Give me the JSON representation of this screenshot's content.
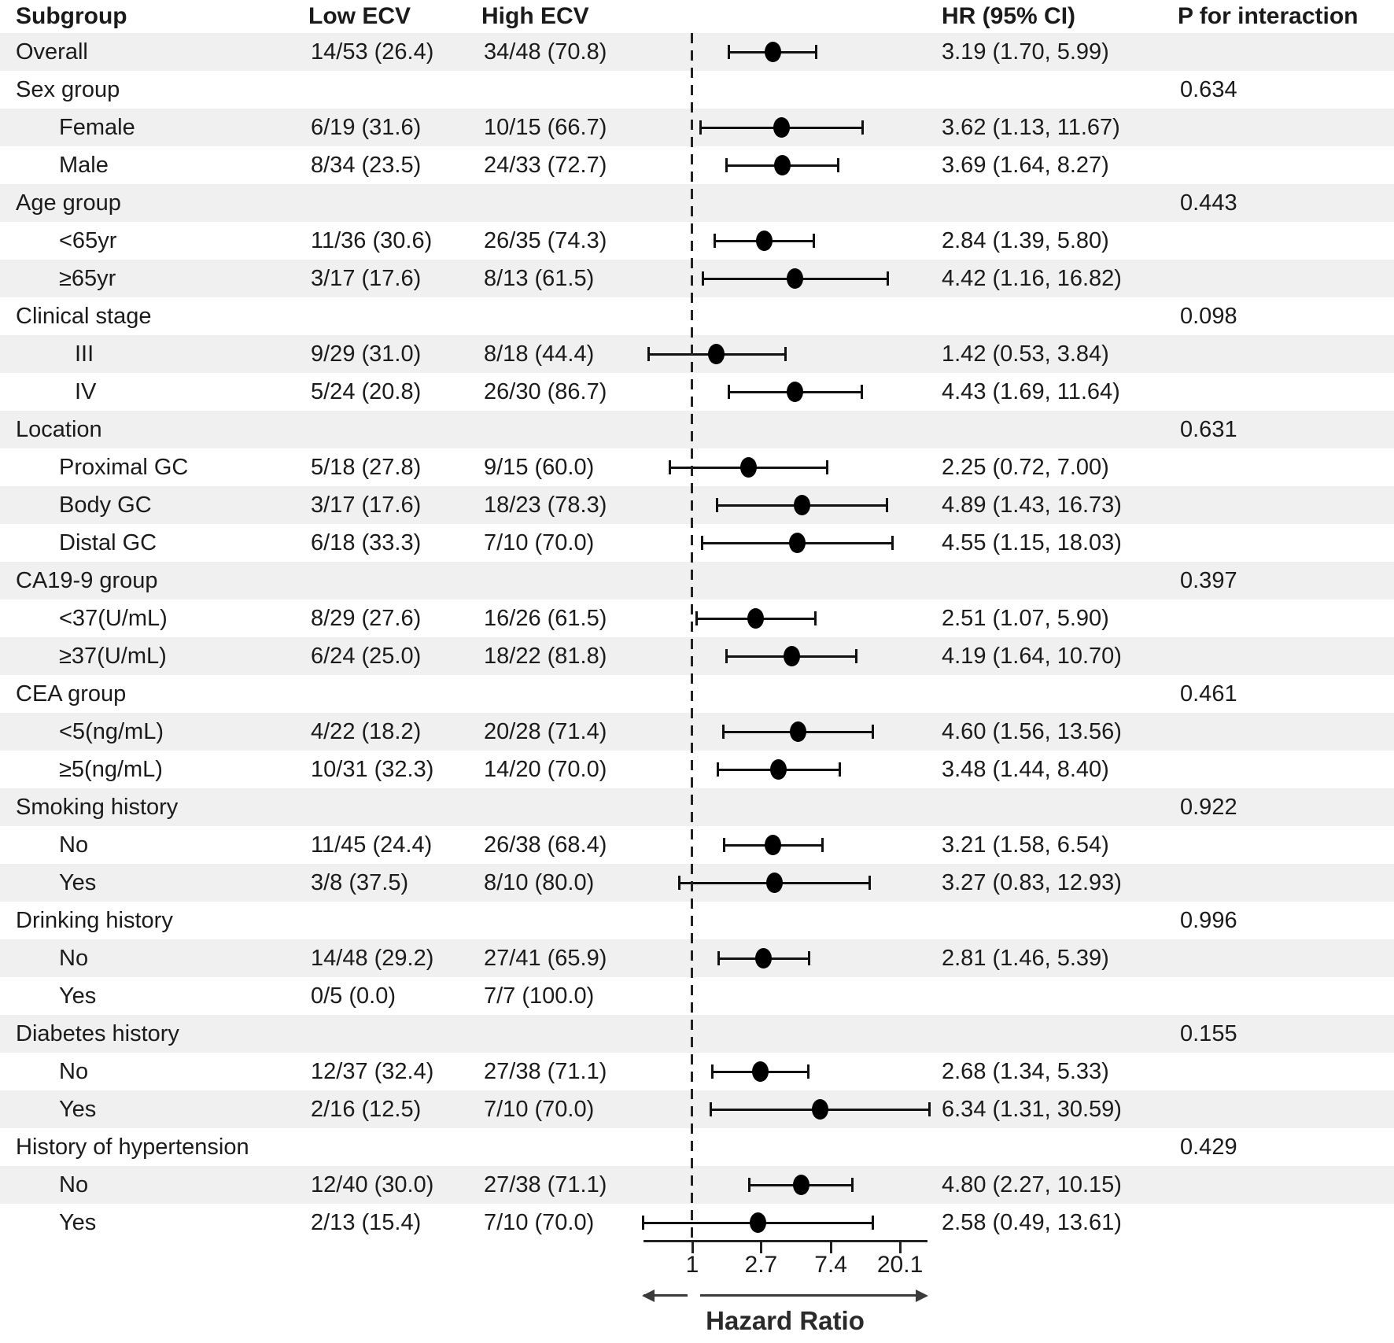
{
  "header": {
    "subgroup": "Subgroup",
    "low": "Low ECV",
    "high": "High ECV",
    "hr": "HR (95% CI)",
    "p": "P for interaction"
  },
  "colors": {
    "stripe": "#eff0ef",
    "ink": "#1b1b1b",
    "marker": "#000000"
  },
  "chart_data": {
    "type": "forest",
    "x_scale": "log",
    "x_ticks": [
      1,
      2.7,
      7.4,
      20.1
    ],
    "x_tick_labels": [
      "1",
      "2.7",
      "7.4",
      "20.1"
    ],
    "xlabel": "Hazard Ratio",
    "reference_line": 1,
    "columns": [
      "Subgroup",
      "Low ECV",
      "High ECV",
      "HR (95% CI)",
      "P for interaction"
    ],
    "rows": [
      {
        "label": "Overall",
        "indent": 0,
        "low": "14/53 (26.4)",
        "high": "34/48 (70.8)",
        "hr": 3.19,
        "ci": [
          1.7,
          5.99
        ],
        "hr_text": "3.19 (1.70, 5.99)",
        "p": ""
      },
      {
        "label": "Sex group",
        "indent": 0,
        "low": "",
        "high": "",
        "hr": null,
        "ci": null,
        "hr_text": "",
        "p": "0.634"
      },
      {
        "label": "Female",
        "indent": 1,
        "low": "6/19 (31.6)",
        "high": "10/15 (66.7)",
        "hr": 3.62,
        "ci": [
          1.13,
          11.67
        ],
        "hr_text": "3.62 (1.13, 11.67)",
        "p": ""
      },
      {
        "label": "Male",
        "indent": 1,
        "low": "8/34 (23.5)",
        "high": "24/33 (72.7)",
        "hr": 3.69,
        "ci": [
          1.64,
          8.27
        ],
        "hr_text": "3.69 (1.64, 8.27)",
        "p": ""
      },
      {
        "label": "Age group",
        "indent": 0,
        "low": "",
        "high": "",
        "hr": null,
        "ci": null,
        "hr_text": "",
        "p": "0.443"
      },
      {
        "label": "<65yr",
        "indent": 1,
        "low": "11/36 (30.6)",
        "high": "26/35 (74.3)",
        "hr": 2.84,
        "ci": [
          1.39,
          5.8
        ],
        "hr_text": "2.84 (1.39, 5.80)",
        "p": ""
      },
      {
        "label": "≥65yr",
        "indent": 1,
        "low": "3/17 (17.6)",
        "high": "8/13 (61.5)",
        "hr": 4.42,
        "ci": [
          1.16,
          16.82
        ],
        "hr_text": "4.42 (1.16, 16.82)",
        "p": ""
      },
      {
        "label": "Clinical stage",
        "indent": 0,
        "low": "",
        "high": "",
        "hr": null,
        "ci": null,
        "hr_text": "",
        "p": "0.098"
      },
      {
        "label": "III",
        "indent": 2,
        "low": "9/29 (31.0)",
        "high": "8/18 (44.4)",
        "hr": 1.42,
        "ci": [
          0.53,
          3.84
        ],
        "hr_text": "1.42 (0.53, 3.84)",
        "p": ""
      },
      {
        "label": "IV",
        "indent": 2,
        "low": "5/24 (20.8)",
        "high": "26/30 (86.7)",
        "hr": 4.43,
        "ci": [
          1.69,
          11.64
        ],
        "hr_text": "4.43 (1.69, 11.64)",
        "p": ""
      },
      {
        "label": "Location",
        "indent": 0,
        "low": "",
        "high": "",
        "hr": null,
        "ci": null,
        "hr_text": "",
        "p": "0.631"
      },
      {
        "label": "Proximal GC",
        "indent": 1,
        "low": "5/18 (27.8)",
        "high": "9/15 (60.0)",
        "hr": 2.25,
        "ci": [
          0.72,
          7.0
        ],
        "hr_text": "2.25 (0.72, 7.00)",
        "p": ""
      },
      {
        "label": "Body GC",
        "indent": 1,
        "low": "3/17 (17.6)",
        "high": "18/23 (78.3)",
        "hr": 4.89,
        "ci": [
          1.43,
          16.73
        ],
        "hr_text": "4.89 (1.43, 16.73)",
        "p": ""
      },
      {
        "label": "Distal GC",
        "indent": 1,
        "low": "6/18 (33.3)",
        "high": "7/10 (70.0)",
        "hr": 4.55,
        "ci": [
          1.15,
          18.03
        ],
        "hr_text": "4.55 (1.15, 18.03)",
        "p": ""
      },
      {
        "label": "CA19-9 group",
        "indent": 0,
        "low": "",
        "high": "",
        "hr": null,
        "ci": null,
        "hr_text": "",
        "p": "0.397"
      },
      {
        "label": "<37(U/mL)",
        "indent": 1,
        "low": "8/29 (27.6)",
        "high": "16/26 (61.5)",
        "hr": 2.51,
        "ci": [
          1.07,
          5.9
        ],
        "hr_text": "2.51 (1.07, 5.90)",
        "p": ""
      },
      {
        "label": "≥37(U/mL)",
        "indent": 1,
        "low": "6/24 (25.0)",
        "high": "18/22 (81.8)",
        "hr": 4.19,
        "ci": [
          1.64,
          10.7
        ],
        "hr_text": "4.19 (1.64, 10.70)",
        "p": ""
      },
      {
        "label": "CEA group",
        "indent": 0,
        "low": "",
        "high": "",
        "hr": null,
        "ci": null,
        "hr_text": "",
        "p": "0.461"
      },
      {
        "label": "<5(ng/mL)",
        "indent": 1,
        "low": "4/22 (18.2)",
        "high": "20/28 (71.4)",
        "hr": 4.6,
        "ci": [
          1.56,
          13.56
        ],
        "hr_text": "4.60 (1.56, 13.56)",
        "p": ""
      },
      {
        "label": "≥5(ng/mL)",
        "indent": 1,
        "low": "10/31 (32.3)",
        "high": "14/20 (70.0)",
        "hr": 3.48,
        "ci": [
          1.44,
          8.4
        ],
        "hr_text": "3.48 (1.44, 8.40)",
        "p": ""
      },
      {
        "label": "Smoking history",
        "indent": 0,
        "low": "",
        "high": "",
        "hr": null,
        "ci": null,
        "hr_text": "",
        "p": "0.922"
      },
      {
        "label": "No",
        "indent": 1,
        "low": "11/45 (24.4)",
        "high": "26/38 (68.4)",
        "hr": 3.21,
        "ci": [
          1.58,
          6.54
        ],
        "hr_text": "3.21 (1.58, 6.54)",
        "p": ""
      },
      {
        "label": "Yes",
        "indent": 1,
        "low": "3/8 (37.5)",
        "high": "8/10 (80.0)",
        "hr": 3.27,
        "ci": [
          0.83,
          12.93
        ],
        "hr_text": "3.27 (0.83, 12.93)",
        "p": ""
      },
      {
        "label": "Drinking history",
        "indent": 0,
        "low": "",
        "high": "",
        "hr": null,
        "ci": null,
        "hr_text": "",
        "p": "0.996"
      },
      {
        "label": "No",
        "indent": 1,
        "low": "14/48 (29.2)",
        "high": "27/41 (65.9)",
        "hr": 2.81,
        "ci": [
          1.46,
          5.39
        ],
        "hr_text": "2.81 (1.46, 5.39)",
        "p": ""
      },
      {
        "label": "Yes",
        "indent": 1,
        "low": "0/5 (0.0)",
        "high": "7/7 (100.0)",
        "hr": null,
        "ci": null,
        "hr_text": "",
        "p": ""
      },
      {
        "label": "Diabetes history",
        "indent": 0,
        "low": "",
        "high": "",
        "hr": null,
        "ci": null,
        "hr_text": "",
        "p": "0.155"
      },
      {
        "label": "No",
        "indent": 1,
        "low": "12/37 (32.4)",
        "high": "27/38 (71.1)",
        "hr": 2.68,
        "ci": [
          1.34,
          5.33
        ],
        "hr_text": "2.68 (1.34, 5.33)",
        "p": ""
      },
      {
        "label": "Yes",
        "indent": 1,
        "low": "2/16 (12.5)",
        "high": "7/10 (70.0)",
        "hr": 6.34,
        "ci": [
          1.31,
          30.59
        ],
        "hr_text": "6.34 (1.31, 30.59)",
        "p": ""
      },
      {
        "label": "History of hypertension",
        "indent": 0,
        "low": "",
        "high": "",
        "hr": null,
        "ci": null,
        "hr_text": "",
        "p": "0.429"
      },
      {
        "label": "No",
        "indent": 1,
        "low": "12/40 (30.0)",
        "high": "27/38 (71.1)",
        "hr": 4.8,
        "ci": [
          2.27,
          10.15
        ],
        "hr_text": "4.80 (2.27, 10.15)",
        "p": ""
      },
      {
        "label": "Yes",
        "indent": 1,
        "low": "2/13 (15.4)",
        "high": "7/10 (70.0)",
        "hr": 2.58,
        "ci": [
          0.49,
          13.61
        ],
        "hr_text": "2.58 (0.49, 13.61)",
        "p": ""
      }
    ]
  }
}
